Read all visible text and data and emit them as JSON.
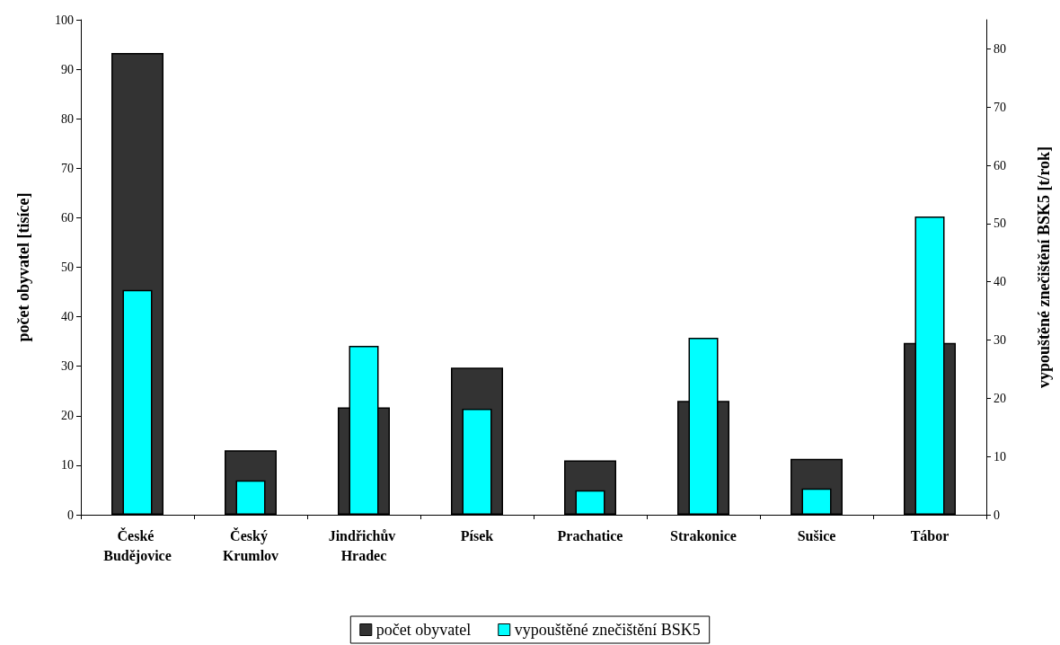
{
  "chart_data": {
    "type": "bar",
    "categories": [
      "České Budějovice",
      "Český Krumlov",
      "Jindřichův Hradec",
      "Písek",
      "Prachatice",
      "Strakonice",
      "Sušice",
      "Tábor"
    ],
    "ylabel": "počet obyvatel [tisíce]",
    "y2label": "vypouštěné znečištění BSK5 [t/rok]",
    "series": [
      {
        "name": "počet obyvatel",
        "color": "#333333",
        "values": [
          93.3,
          13.0,
          21.7,
          29.7,
          11.0,
          23.0,
          11.3,
          34.7
        ]
      },
      {
        "name": "vypouštěné znečištění BSK5",
        "color": "#00ffff",
        "axis": "y2",
        "values": [
          38.6,
          5.9,
          29.0,
          18.2,
          4.2,
          30.4,
          4.5,
          51.2
        ]
      }
    ],
    "ylim": [
      0,
      100
    ],
    "yticks": [
      0,
      10,
      20,
      30,
      40,
      50,
      60,
      70,
      80,
      90,
      100
    ],
    "y2lim": [
      0,
      85
    ],
    "y2ticks": [
      0,
      10,
      20,
      30,
      40,
      50,
      60,
      70,
      80
    ],
    "grid": false,
    "legend": "bottom"
  }
}
